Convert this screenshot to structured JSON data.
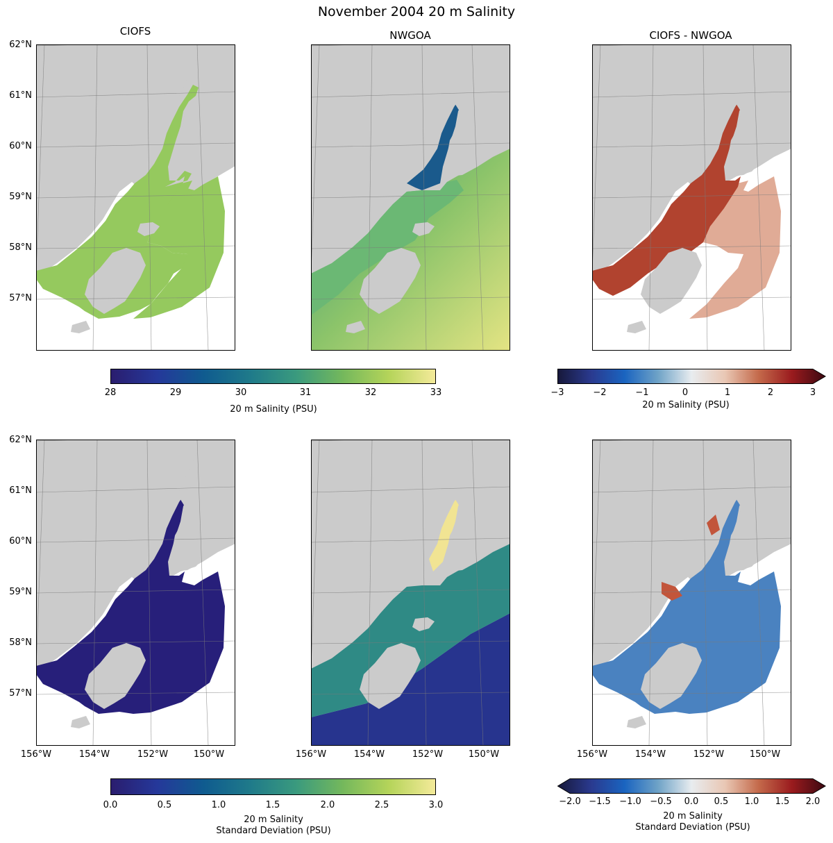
{
  "figure": {
    "title": "November 2004 20 m Salinity"
  },
  "panels": {
    "col_titles": [
      "CIOFS",
      "NWGOA",
      "CIOFS - NWGOA"
    ]
  },
  "axes": {
    "lat_labels": [
      "62°N",
      "61°N",
      "60°N",
      "59°N",
      "58°N",
      "57°N"
    ],
    "lon_labels": [
      "156°W",
      "154°W",
      "152°W",
      "150°W"
    ]
  },
  "colorbars": {
    "mean": {
      "label": "20 m Salinity (PSU)",
      "ticks": [
        "28",
        "29",
        "30",
        "31",
        "32",
        "33"
      ],
      "range": [
        28,
        33
      ],
      "colormap": "haline",
      "colors": [
        "#2a1d6e",
        "#25389a",
        "#0f5b8f",
        "#1f7a8a",
        "#3a9a7e",
        "#74b85c",
        "#b5d45a",
        "#f4ea9a"
      ]
    },
    "mean_diff": {
      "label": "20 m Salinity (PSU)",
      "ticks": [
        "−3",
        "−2",
        "−1",
        "0",
        "1",
        "2",
        "3"
      ],
      "range": [
        -3,
        3
      ],
      "extend": "max",
      "colormap": "balance",
      "colors": [
        "#17183a",
        "#2a3a8f",
        "#1a64c0",
        "#6fa3c7",
        "#e8ecef",
        "#e9c7b4",
        "#c46a4b",
        "#9a1b1e",
        "#3c0911"
      ]
    },
    "std": {
      "label_line1": "20 m Salinity",
      "label_line2": "Standard Deviation (PSU)",
      "ticks": [
        "0.0",
        "0.5",
        "1.0",
        "1.5",
        "2.0",
        "2.5",
        "3.0"
      ],
      "range": [
        0,
        3
      ],
      "colormap": "haline",
      "colors": [
        "#2a1d6e",
        "#25389a",
        "#0f5b8f",
        "#1f7a8a",
        "#3a9a7e",
        "#74b85c",
        "#b5d45a",
        "#f4ea9a"
      ]
    },
    "std_diff": {
      "label_line1": "20 m Salinity",
      "label_line2": "Standard Deviation (PSU)",
      "ticks": [
        "−2.0",
        "−1.5",
        "−1.0",
        "−0.5",
        "0.0",
        "0.5",
        "1.0",
        "1.5",
        "2.0"
      ],
      "range": [
        -2,
        2
      ],
      "extend": "both",
      "colormap": "balance",
      "colors": [
        "#17183a",
        "#2a3a8f",
        "#1a64c0",
        "#6fa3c7",
        "#e8ecef",
        "#e9c7b4",
        "#c46a4b",
        "#9a1b1e",
        "#3c0911"
      ]
    }
  },
  "map_colors": {
    "land": "#cbcbcb",
    "ocean_background": "#ffffff",
    "grid": "#7a7a7a"
  },
  "panel_fills": {
    "ciofs_mean": "#95c95e",
    "nwgoa_mean_inlet": "#1a5a8c",
    "nwgoa_mean_shelf": "#6bb874",
    "nwgoa_mean_offshore": "#d6e07a",
    "diff_mean_inlet": "#b1432f",
    "diff_mean_shelf": "#e0ab96",
    "ciofs_std": "#271f7a",
    "nwgoa_std_shelf": "#2f8a85",
    "nwgoa_std_offshore": "#27348e",
    "nwgoa_std_upper": "#f1e493",
    "diff_std_main": "#4a82c0",
    "diff_std_upper": "#c2553b"
  }
}
